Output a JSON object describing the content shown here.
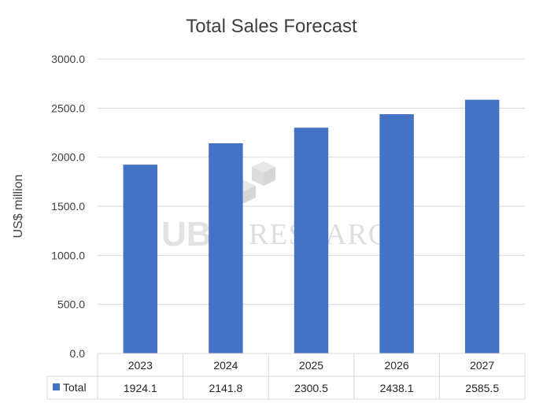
{
  "chart_data": {
    "type": "bar",
    "title": "Total Sales Forecast",
    "ylabel": "US$ million",
    "xlabel": "",
    "categories": [
      "2023",
      "2024",
      "2025",
      "2026",
      "2027"
    ],
    "series": [
      {
        "name": "Total",
        "values": [
          1924.1,
          2141.8,
          2300.5,
          2438.1,
          2585.5
        ],
        "color": "#4472c4"
      }
    ],
    "value_labels": [
      "1924.1",
      "2141.8",
      "2300.5",
      "2438.1",
      "2585.5"
    ],
    "ylim": [
      0,
      3000
    ],
    "yticks": [
      "0.0",
      "500.0",
      "1000.0",
      "1500.0",
      "2000.0",
      "2500.0",
      "3000.0"
    ],
    "grid": true,
    "legend": "data-table"
  },
  "watermark": {
    "logo": "UBI",
    "text": "RESEARCH"
  }
}
